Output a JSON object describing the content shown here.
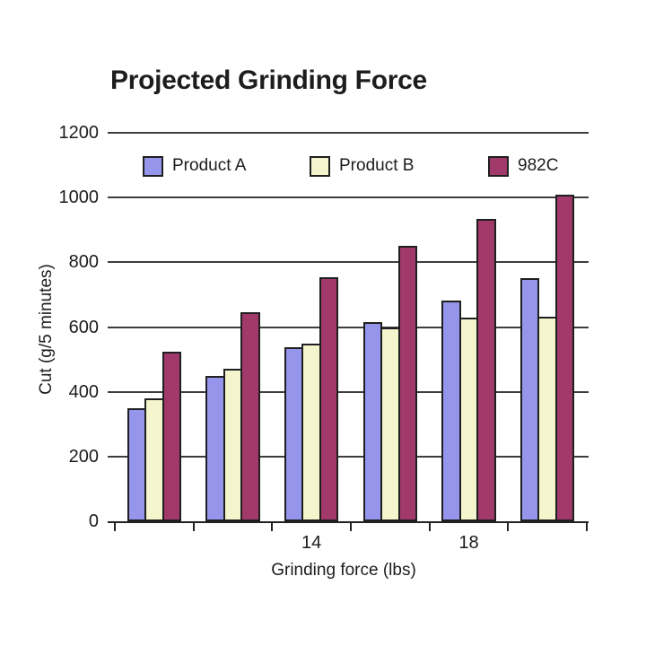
{
  "chart_data": {
    "type": "bar",
    "title": "Projected Grinding Force",
    "xlabel": "Grinding force (lbs)",
    "ylabel": "Cut (g/5 minutes)",
    "ylim": [
      0,
      1200
    ],
    "ytick_step": 200,
    "ytick_labels": [
      "0",
      "200",
      "400",
      "600",
      "800",
      "1000",
      "1200"
    ],
    "categories": [
      "",
      "",
      "14",
      "",
      "18",
      ""
    ],
    "series": [
      {
        "name": "Product A",
        "color": "#9595EC",
        "values": [
          350,
          450,
          538,
          615,
          683,
          750
        ]
      },
      {
        "name": "Product B",
        "color": "#F5F5CD",
        "values": [
          380,
          470,
          548,
          598,
          630,
          633
        ]
      },
      {
        "name": "982C",
        "color": "#A1396B",
        "values": [
          525,
          645,
          753,
          852,
          933,
          1008
        ]
      }
    ],
    "legend": {
      "position": "top-inside",
      "entries": [
        "Product A",
        "Product B",
        "982C"
      ]
    },
    "grid": "horizontal",
    "colors": {
      "bar_border": "#1F1F1F",
      "gridline": "#3D3D3D",
      "axis": "#222222",
      "text": "#1C1C1C",
      "background": "#FFFFFF"
    }
  }
}
